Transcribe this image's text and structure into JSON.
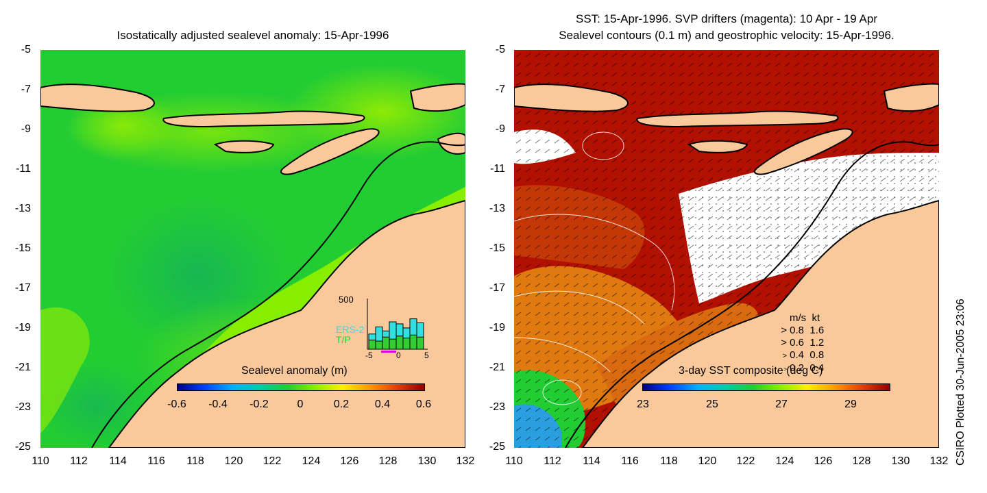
{
  "left_panel": {
    "title": "Isostatically adjusted sealevel anomaly: 15-Apr-1996",
    "colorbar": {
      "title": "Sealevel anomaly (m)",
      "ticks": [
        "-0.6",
        "-0.4",
        "-0.2",
        "0",
        "0.2",
        "0.4",
        "0.6"
      ]
    },
    "inset": {
      "ymax_label": "500",
      "legend": [
        "ERS-2",
        "T/P"
      ],
      "legend_colors": [
        "#33e0e0",
        "#33cc33"
      ],
      "x_ticks": [
        "-5",
        "0",
        "5"
      ],
      "ers2_counts": [
        150,
        220,
        180,
        270,
        250,
        210,
        300,
        260
      ],
      "tp_counts": [
        90,
        80,
        120,
        100,
        130,
        110,
        140,
        120
      ]
    }
  },
  "right_panel": {
    "title_line1": "SST: 15-Apr-1996. SVP drifters (magenta): 10 Apr - 19 Apr",
    "title_line2": "Sealevel contours (0.1 m) and geostrophic velocity: 15-Apr-1996.",
    "colorbar": {
      "title": "3-day SST composite (deg C)",
      "ticks": [
        "23",
        "25",
        "27",
        "29"
      ]
    },
    "velocity_legend": {
      "header": [
        "m/s",
        "kt"
      ],
      "rows": [
        [
          "0.8",
          "1.6"
        ],
        [
          "0.6",
          "1.2"
        ],
        [
          "0.4",
          "0.8"
        ],
        [
          "0.2",
          "0.4"
        ]
      ]
    }
  },
  "axes": {
    "y_ticks": [
      "-5",
      "-7",
      "-9",
      "-11",
      "-13",
      "-15",
      "-17",
      "-19",
      "-21",
      "-23",
      "-25"
    ],
    "x_ticks": [
      "110",
      "112",
      "114",
      "116",
      "118",
      "120",
      "122",
      "124",
      "126",
      "128",
      "130",
      "132"
    ]
  },
  "side_label": "CSIRO Plotted 30-Jun-2005 23:06",
  "colors": {
    "land": "#f9c99b",
    "ocean_green": "#22cc33",
    "ocean_lime": "#88ee00",
    "sst_red": "#b21000",
    "sst_orange": "#e07a10",
    "sst_white": "#ffffff"
  }
}
